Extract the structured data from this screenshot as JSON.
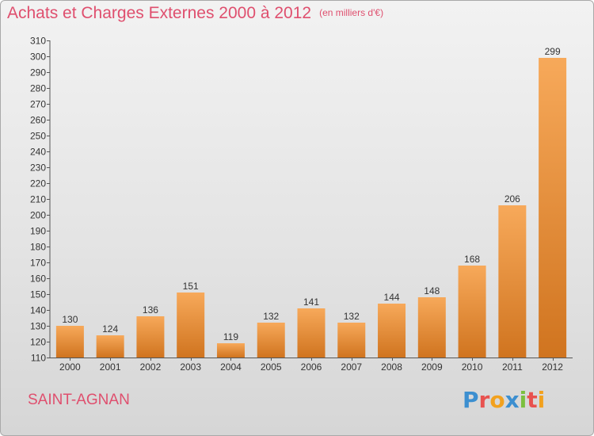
{
  "header": {
    "title": "Achats et Charges Externes 2000 à 2012",
    "unit": "(en milliers d'€)"
  },
  "footer": {
    "commune": "SAINT-AGNAN",
    "logo": "Proxiti",
    "logo_colors": [
      "#3c8fd0",
      "#e8524f",
      "#f2a11e",
      "#3c8fd0",
      "#7cbf3f",
      "#e8524f",
      "#f2a11e"
    ]
  },
  "colors": {
    "bar_light": "#f7a95a",
    "bar_dark": "#d0741f",
    "text": "#333333",
    "title": "#df4f6e"
  },
  "chart_data": {
    "type": "bar",
    "categories": [
      "2000",
      "2001",
      "2002",
      "2003",
      "2004",
      "2005",
      "2006",
      "2007",
      "2008",
      "2009",
      "2010",
      "2011",
      "2012"
    ],
    "values": [
      130,
      124,
      136,
      151,
      119,
      132,
      141,
      132,
      144,
      148,
      168,
      206,
      299
    ],
    "ylim": [
      110,
      310
    ],
    "ytick_step": 10,
    "grid": false,
    "legend": "none",
    "data_labels": true
  }
}
